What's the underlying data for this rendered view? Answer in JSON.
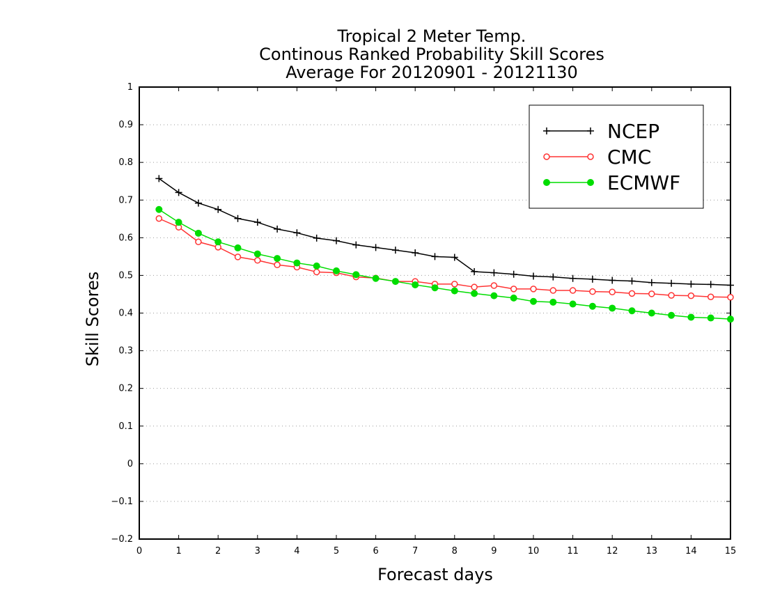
{
  "chart_data": {
    "type": "line",
    "title": [
      "Tropical 2 Meter Temp.",
      "Continous Ranked Probability Skill Scores",
      "Average For 20120901 - 20121130"
    ],
    "xlabel": "Forecast days",
    "ylabel": "Skill Scores",
    "xlim": [
      0,
      15
    ],
    "ylim": [
      -0.2,
      1
    ],
    "xticks": [
      "0",
      "1",
      "2",
      "3",
      "4",
      "5",
      "6",
      "7",
      "8",
      "9",
      "10",
      "11",
      "12",
      "13",
      "14",
      "15"
    ],
    "yticks": [
      "1",
      "0.9",
      "0.8",
      "0.7",
      "0.6",
      "0.5",
      "0.4",
      "0.3",
      "0.2",
      "0.1",
      "0",
      "−0.1",
      "−0.2"
    ],
    "grid": "horizontal dotted",
    "legend_position": "top-right",
    "x": [
      0.5,
      1,
      1.5,
      2,
      2.5,
      3,
      3.5,
      4,
      4.5,
      5,
      5.5,
      6,
      6.5,
      7,
      7.5,
      8,
      8.5,
      9,
      9.5,
      10,
      10.5,
      11,
      11.5,
      12,
      12.5,
      13,
      13.5,
      14,
      14.5,
      15
    ],
    "series": [
      {
        "name": "NCEP",
        "color": "#000000",
        "marker": "plus",
        "values": [
          0.757,
          0.72,
          0.692,
          0.675,
          0.651,
          0.641,
          0.623,
          0.613,
          0.599,
          0.592,
          0.581,
          0.574,
          0.567,
          0.56,
          0.55,
          0.548,
          0.51,
          0.507,
          0.503,
          0.498,
          0.496,
          0.492,
          0.49,
          0.487,
          0.485,
          0.481,
          0.479,
          0.477,
          0.476,
          0.474
        ]
      },
      {
        "name": "CMC",
        "color": "#ff3333",
        "marker": "open-circle",
        "values": [
          0.651,
          0.628,
          0.589,
          0.575,
          0.549,
          0.54,
          0.528,
          0.522,
          0.509,
          0.507,
          0.496,
          0.493,
          0.484,
          0.484,
          0.477,
          0.477,
          0.469,
          0.473,
          0.464,
          0.464,
          0.46,
          0.46,
          0.457,
          0.456,
          0.452,
          0.451,
          0.447,
          0.446,
          0.443,
          0.442
        ]
      },
      {
        "name": "ECMWF",
        "color": "#00dd00",
        "marker": "filled-circle",
        "values": [
          0.675,
          0.641,
          0.612,
          0.589,
          0.573,
          0.557,
          0.545,
          0.533,
          0.525,
          0.512,
          0.502,
          0.492,
          0.484,
          0.475,
          0.467,
          0.459,
          0.452,
          0.446,
          0.44,
          0.431,
          0.429,
          0.424,
          0.418,
          0.413,
          0.406,
          0.4,
          0.394,
          0.389,
          0.387,
          0.384
        ]
      }
    ]
  }
}
